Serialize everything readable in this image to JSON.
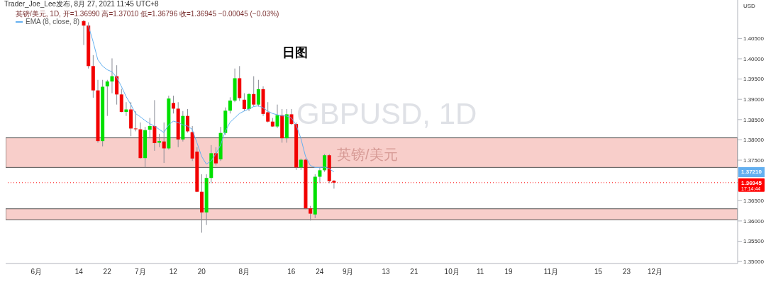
{
  "chart_data": {
    "type": "candlestick",
    "title": "日图",
    "subtitle": "英镑/美元, 1D, 开=1.36990 高=1.37010 低=1.36796 收=1.36945 −0.00045 (−0.03%)",
    "ylabel": "USD",
    "annotations": [
      "Trader_Joe_Lee发布, 8月 27, 2021 11:45 UTC+8",
      "GBPUSD, 1D",
      "英镑/美元",
      {
        "text": "1.37210",
        "y": 1.3721
      },
      "17:14:44"
    ],
    "categories": [
      null,
      null,
      null,
      null,
      null,
      null,
      "6月",
      null,
      null,
      null,
      null,
      null,
      null,
      null,
      null,
      "14",
      null,
      null,
      null,
      null,
      null,
      "22",
      null,
      null,
      null,
      null,
      null,
      null,
      "7月",
      null,
      null,
      null,
      null,
      null,
      null,
      "12",
      null,
      null,
      null,
      null,
      null,
      "20",
      null,
      null,
      null,
      null,
      null,
      null,
      null,
      null,
      "8月",
      null,
      null,
      null,
      null,
      null,
      null,
      null,
      null,
      null,
      "16",
      null,
      null,
      null,
      null,
      null,
      "24",
      null,
      null,
      null,
      null,
      null,
      "9月",
      null,
      null,
      null,
      null,
      null,
      null,
      null,
      "13",
      null,
      null,
      null,
      null,
      null,
      "21",
      null,
      null,
      null,
      null,
      null,
      null,
      null,
      "10月",
      null,
      null,
      null,
      null,
      null,
      "11",
      null,
      null,
      null,
      null,
      null,
      "19",
      null,
      null,
      null,
      null,
      null,
      null,
      null,
      null,
      "11月",
      null,
      null,
      null,
      null,
      null,
      null,
      null,
      null,
      null,
      "15",
      null,
      null,
      null,
      null,
      null,
      "23",
      null,
      null,
      null,
      null,
      null,
      "12月",
      null,
      null,
      null,
      null,
      null,
      null,
      null,
      null,
      null,
      null,
      null,
      null,
      null,
      null,
      null,
      null,
      null
    ],
    "ohlc": [
      null,
      null,
      null,
      null,
      null,
      null,
      null,
      null,
      null,
      null,
      null,
      null,
      null,
      null,
      null,
      null,
      [
        1.4093,
        1.4096,
        1.4034,
        1.4082
      ],
      [
        1.4082,
        1.409,
        1.3976,
        1.3982
      ],
      [
        1.3982,
        1.4009,
        1.3904,
        1.3922
      ],
      [
        1.3922,
        1.3948,
        1.3793,
        1.3797
      ],
      [
        1.3797,
        1.3948,
        1.3784,
        1.3931
      ],
      [
        1.3932,
        1.3948,
        1.3859,
        1.3944
      ],
      [
        1.3944,
        1.4001,
        1.3915,
        1.3957
      ],
      [
        1.3957,
        1.3984,
        1.3887,
        1.3912
      ],
      [
        1.3912,
        1.3926,
        1.3868,
        1.3869
      ],
      [
        1.3869,
        1.3893,
        1.3859,
        1.3875
      ],
      [
        1.3875,
        1.3893,
        1.3809,
        1.3828
      ],
      [
        1.3828,
        1.3871,
        1.3821,
        1.3827
      ],
      [
        1.3826,
        1.3843,
        1.3754,
        1.3755
      ],
      [
        1.3755,
        1.3832,
        1.3732,
        1.3824
      ],
      [
        1.3825,
        1.3854,
        1.3804,
        1.3834
      ],
      [
        1.3834,
        1.3898,
        1.3773,
        1.3792
      ],
      [
        1.3793,
        1.3815,
        1.3782,
        1.3797
      ],
      [
        1.3796,
        1.3843,
        1.3743,
        1.3779
      ],
      [
        1.3779,
        1.3909,
        1.3776,
        1.3902
      ],
      [
        1.3891,
        1.3909,
        1.3865,
        1.3877
      ],
      [
        1.3877,
        1.3893,
        1.3782,
        1.3801
      ],
      [
        1.3801,
        1.3871,
        1.3796,
        1.3859
      ],
      [
        1.3859,
        1.3876,
        1.3818,
        1.3821
      ],
      [
        1.3819,
        1.3834,
        1.3748,
        1.3754
      ],
      [
        1.3771,
        1.3782,
        1.3671,
        1.3672
      ],
      [
        1.3672,
        1.3715,
        1.3571,
        1.3621
      ],
      [
        1.3621,
        1.3715,
        1.359,
        1.3706
      ],
      [
        1.3706,
        1.3787,
        1.3693,
        1.3767
      ],
      [
        1.3767,
        1.3782,
        1.3737,
        1.3742
      ],
      [
        1.3752,
        1.3832,
        1.3748,
        1.3817
      ],
      [
        1.3817,
        1.388,
        1.3812,
        1.3872
      ],
      [
        1.3872,
        1.3905,
        1.3865,
        1.3897
      ],
      [
        1.3897,
        1.3976,
        1.3893,
        1.3952
      ],
      [
        1.3952,
        1.3982,
        1.3896,
        1.3903
      ],
      [
        1.3899,
        1.3915,
        1.3871,
        1.3876
      ],
      [
        1.3876,
        1.3915,
        1.3871,
        1.3913
      ],
      [
        1.3913,
        1.3957,
        1.3882,
        1.3887
      ],
      [
        1.3887,
        1.3948,
        1.3882,
        1.3925
      ],
      [
        1.3925,
        1.3932,
        1.3859,
        1.3864
      ],
      [
        1.3868,
        1.3893,
        1.3843,
        1.3845
      ],
      [
        1.3845,
        1.3854,
        1.3832,
        1.3833
      ],
      [
        1.3833,
        1.3887,
        1.3829,
        1.3861
      ],
      [
        1.3861,
        1.3876,
        1.3793,
        1.3804
      ],
      [
        1.3804,
        1.3876,
        1.3793,
        1.3863
      ],
      [
        1.3863,
        1.3876,
        1.3837,
        1.3839
      ],
      [
        1.3839,
        1.3843,
        1.3726,
        1.3732
      ],
      [
        1.3732,
        1.3754,
        1.3726,
        1.3751
      ],
      [
        1.3751,
        1.3754,
        1.3629,
        1.3631
      ],
      [
        1.3631,
        1.3637,
        1.3601,
        1.3618
      ],
      [
        1.3616,
        1.3715,
        1.3607,
        1.3709
      ],
      [
        1.3709,
        1.3732,
        1.3693,
        1.3725
      ],
      [
        1.3725,
        1.3765,
        1.3721,
        1.3762
      ],
      [
        1.3762,
        1.3765,
        1.3693,
        1.3698
      ],
      [
        1.3699,
        1.3701,
        1.36796,
        1.36945
      ],
      null,
      null,
      null,
      null,
      null,
      null,
      null,
      null,
      null,
      null,
      null,
      null,
      null,
      null,
      null,
      null,
      null,
      null,
      null,
      null,
      null,
      null,
      null,
      null,
      null,
      null,
      null,
      null,
      null,
      null,
      null,
      null,
      null,
      null,
      null,
      null,
      null,
      null,
      null,
      null,
      null,
      null,
      null,
      null,
      null,
      null,
      null,
      null,
      null,
      null,
      null,
      null,
      null,
      null,
      null,
      null,
      null,
      null,
      null,
      null,
      null,
      null,
      null,
      null,
      null,
      null,
      null,
      null,
      null,
      null,
      null,
      null,
      null,
      null,
      null,
      null,
      null,
      null,
      null,
      null,
      null,
      null,
      null,
      null,
      null
    ],
    "colors": [
      null,
      null,
      null,
      null,
      null,
      null,
      null,
      null,
      null,
      null,
      null,
      null,
      null,
      null,
      null,
      null,
      "#f20000",
      "#f20000",
      "#f20000",
      "#f20000",
      "#00e000",
      "#00e000",
      "#00e000",
      "#f20000",
      "#f20000",
      "#00e000",
      "#f20000",
      "#f20000",
      "#f20000",
      "#00e000",
      "#00e000",
      "#f20000",
      "#00e000",
      "#f20000",
      "#00e000",
      "#f20000",
      "#f20000",
      "#00e000",
      "#f20000",
      "#f20000",
      "#f20000",
      "#f20000",
      "#00e000",
      "#00e000",
      "#f20000",
      "#00e000",
      "#00e000",
      "#00e000",
      "#00e000",
      "#f20000",
      "#f20000",
      "#00e000",
      "#f20000",
      "#00e000",
      "#f20000",
      "#f20000",
      "#f20000",
      "#00e000",
      "#f20000",
      "#00e000",
      "#f20000",
      "#f20000",
      "#00e000",
      "#f20000",
      "#f20000",
      "#00e000",
      "#00e000",
      "#00e000",
      "#f20000",
      "#f20000",
      null,
      null,
      null,
      null,
      null,
      null,
      null,
      null,
      null,
      null,
      null,
      null,
      null,
      null,
      null,
      null,
      null,
      null,
      null,
      null,
      null,
      null,
      null,
      null,
      null,
      null,
      null,
      null,
      null,
      null,
      null,
      null,
      null,
      null,
      null,
      null,
      null,
      null,
      null,
      null,
      null,
      null,
      null,
      null,
      null,
      null,
      null,
      null,
      null,
      null,
      null,
      null,
      null,
      null,
      null,
      null,
      null,
      null,
      null,
      null,
      null,
      null,
      null,
      null,
      null,
      null,
      null,
      null,
      null,
      null,
      null,
      null,
      null,
      null,
      null,
      null,
      null,
      null,
      null,
      null,
      null,
      null,
      null,
      null,
      null
    ],
    "series": [
      {
        "type": "line",
        "name": "EMA (8, close, 8)",
        "color": "#64b0f0",
        "values": [
          null,
          null,
          null,
          null,
          null,
          null,
          null,
          null,
          null,
          null,
          null,
          null,
          null,
          null,
          null,
          null,
          null,
          1.4082,
          1.4043,
          1.3998,
          1.3982,
          1.3973,
          1.3968,
          1.3954,
          1.3932,
          1.3907,
          1.3887,
          1.3865,
          1.3857,
          1.3848,
          1.384,
          1.3834,
          1.3826,
          1.3818,
          1.3837,
          1.3846,
          1.3843,
          1.3837,
          1.3834,
          1.3826,
          1.3793,
          1.3759,
          1.374,
          1.3748,
          1.3765,
          1.3787,
          1.3821,
          1.3843,
          1.3854,
          1.3865,
          1.3871,
          1.3876,
          1.3882,
          1.3884,
          1.3879,
          1.3871,
          1.3865,
          1.3862,
          1.3859,
          1.3859,
          1.3854,
          1.3837,
          1.3804,
          1.3759,
          1.3737,
          1.3732,
          1.3732,
          1.3733,
          1.3729,
          1.3721,
          null,
          null,
          null,
          null,
          null,
          null,
          null,
          null,
          null,
          null,
          null,
          null,
          null,
          null,
          null,
          null,
          null,
          null,
          null,
          null,
          null,
          null,
          null,
          null,
          null,
          null,
          null,
          null,
          null,
          null,
          null,
          null,
          null,
          null,
          null,
          null,
          null,
          null,
          null,
          null,
          null,
          null,
          null,
          null,
          null,
          null,
          null,
          null,
          null,
          null,
          null,
          null,
          null,
          null,
          null,
          null,
          null,
          null,
          null,
          null,
          null,
          null,
          null,
          null,
          null,
          null,
          null,
          null,
          null,
          null,
          null,
          null,
          null,
          null,
          null,
          null,
          null,
          null,
          null,
          null,
          null,
          null,
          null,
          null,
          null
        ]
      }
    ],
    "ylim": [
      1.3495,
      1.4145
    ],
    "yticks": [
      {
        "value": 1.35,
        "label": "1.35000"
      },
      {
        "value": 1.355,
        "label": "1.35500"
      },
      {
        "value": 1.36,
        "label": "1.36000"
      },
      {
        "value": 1.365,
        "label": "1.36500"
      },
      {
        "value": 1.375,
        "label": "1.37500"
      },
      {
        "value": 1.38,
        "label": "1.38000"
      },
      {
        "value": 1.385,
        "label": "1.38500"
      },
      {
        "value": 1.39,
        "label": "1.39000"
      },
      {
        "value": 1.395,
        "label": "1.39500"
      },
      {
        "value": 1.4,
        "label": "1.40000"
      },
      {
        "value": 1.405,
        "label": "1.40500"
      }
    ],
    "ref_lines": [
      {
        "axis": "y",
        "value": 1.36945,
        "label": "1.36945",
        "color": "#ff0000",
        "line_style": "dotted"
      }
    ],
    "bands": [
      {
        "axis": "y",
        "from": 1.3732,
        "to": 1.3805,
        "color": "#f7c5c1"
      },
      {
        "axis": "y",
        "from": 1.3603,
        "to": 1.363,
        "color": "#f7c5c1"
      }
    ],
    "legend": "top left"
  }
}
